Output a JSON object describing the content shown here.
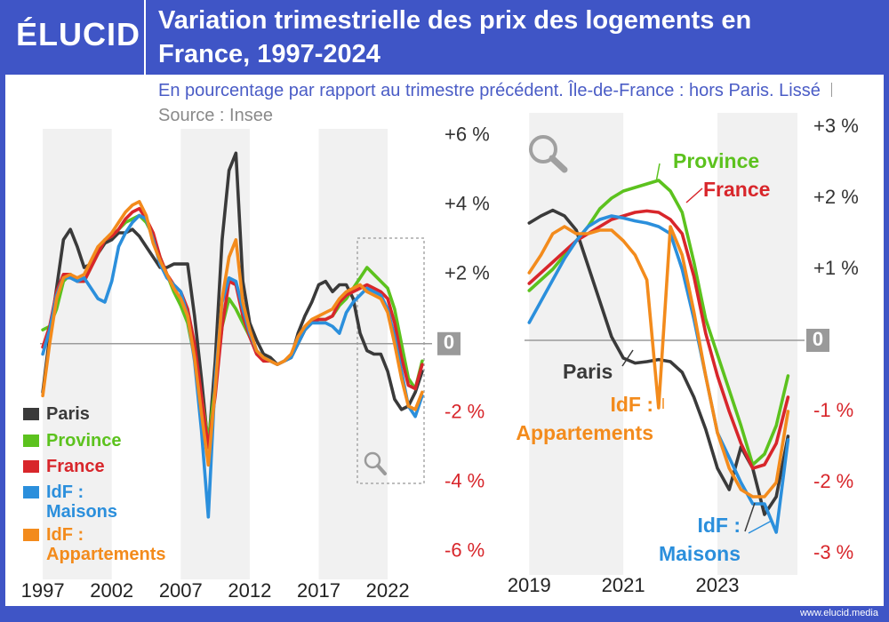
{
  "logo": "ÉLUCID",
  "title": "Variation trimestrielle des prix des logements en France, 1997-2024",
  "subtitle": "En pourcentage par rapport au trimestre précédent. Île-de-France : hors Paris. Lissé",
  "source": "Source : Insee",
  "footer": "www.elucid.media",
  "chart_data": [
    {
      "type": "line",
      "x": [
        1997,
        1997.5,
        1998,
        1998.5,
        1999,
        1999.5,
        2000,
        2000.5,
        2001,
        2001.5,
        2002,
        2002.5,
        2003,
        2003.5,
        2004,
        2004.5,
        2005,
        2005.5,
        2006,
        2006.5,
        2007,
        2007.5,
        2008,
        2008.5,
        2009,
        2009.5,
        2010,
        2010.5,
        2011,
        2011.5,
        2012,
        2012.5,
        2013,
        2013.5,
        2014,
        2014.5,
        2015,
        2015.5,
        2016,
        2016.5,
        2017,
        2017.5,
        2018,
        2018.5,
        2019,
        2019.5,
        2020,
        2020.5,
        2021,
        2021.5,
        2022,
        2022.5,
        2023,
        2023.5,
        2024,
        2024.5
      ],
      "series": [
        {
          "name": "Paris",
          "color": "#3a3a3a",
          "values": [
            -1.4,
            0.2,
            1.6,
            3.0,
            3.3,
            2.8,
            2.2,
            2.3,
            2.6,
            2.9,
            3.0,
            3.2,
            3.2,
            3.3,
            3.1,
            2.8,
            2.5,
            2.2,
            2.2,
            2.3,
            2.3,
            2.3,
            0.8,
            -1.0,
            -3.0,
            -0.5,
            3.0,
            5.0,
            5.5,
            1.8,
            0.6,
            0.1,
            -0.3,
            -0.4,
            -0.6,
            -0.5,
            -0.4,
            0.3,
            0.8,
            1.2,
            1.7,
            1.8,
            1.5,
            1.7,
            1.7,
            1.3,
            0.3,
            -0.2,
            -0.3,
            -0.3,
            -0.8,
            -1.6,
            -1.9,
            -1.8,
            -1.4,
            -0.8
          ]
        },
        {
          "name": "Province",
          "color": "#5cc21e",
          "values": [
            0.4,
            0.5,
            1.0,
            1.8,
            2.0,
            1.8,
            1.8,
            2.2,
            2.6,
            3.0,
            3.1,
            3.3,
            3.5,
            3.6,
            3.7,
            3.5,
            3.1,
            2.5,
            2.0,
            1.5,
            1.1,
            0.6,
            -0.4,
            -1.5,
            -2.8,
            -1.2,
            0.5,
            1.3,
            1.0,
            0.6,
            0.2,
            -0.2,
            -0.4,
            -0.5,
            -0.6,
            -0.5,
            -0.4,
            0.0,
            0.4,
            0.6,
            0.7,
            0.7,
            0.8,
            1.1,
            1.3,
            1.6,
            1.9,
            2.2,
            2.0,
            1.8,
            1.6,
            1.0,
            0.0,
            -1.0,
            -1.3,
            -0.5
          ]
        },
        {
          "name": "France",
          "color": "#d8262b",
          "values": [
            -0.1,
            0.5,
            1.5,
            2.0,
            2.0,
            1.8,
            1.8,
            2.2,
            2.6,
            3.0,
            3.1,
            3.3,
            3.6,
            3.8,
            3.9,
            3.6,
            3.2,
            2.5,
            2.0,
            1.7,
            1.5,
            1.0,
            0.0,
            -1.5,
            -3.0,
            -1.5,
            0.5,
            1.8,
            1.7,
            0.8,
            0.2,
            -0.3,
            -0.5,
            -0.5,
            -0.6,
            -0.5,
            -0.4,
            0.0,
            0.4,
            0.6,
            0.7,
            0.7,
            0.8,
            1.2,
            1.4,
            1.5,
            1.6,
            1.7,
            1.6,
            1.5,
            1.3,
            0.6,
            -0.4,
            -1.2,
            -1.3,
            -0.6
          ]
        },
        {
          "name": "IdF : Maisons",
          "color": "#2b8fdc",
          "values": [
            -0.3,
            0.4,
            1.4,
            1.9,
            1.9,
            1.8,
            1.9,
            1.6,
            1.3,
            1.2,
            1.8,
            2.8,
            3.2,
            3.5,
            3.7,
            3.6,
            3.0,
            2.3,
            1.9,
            1.7,
            1.5,
            0.8,
            -0.5,
            -2.5,
            -5.0,
            -1.0,
            1.2,
            1.9,
            1.8,
            1.0,
            0.3,
            -0.2,
            -0.4,
            -0.5,
            -0.6,
            -0.5,
            -0.4,
            0.0,
            0.4,
            0.6,
            0.6,
            0.6,
            0.5,
            0.3,
            0.9,
            1.2,
            1.4,
            1.6,
            1.5,
            1.4,
            1.0,
            0.2,
            -0.8,
            -1.8,
            -2.1,
            -1.5
          ]
        },
        {
          "name": "IdF : Appartements",
          "color": "#f38b1c",
          "values": [
            -1.5,
            0.0,
            1.3,
            1.9,
            2.0,
            1.9,
            2.0,
            2.4,
            2.8,
            3.0,
            3.2,
            3.5,
            3.8,
            4.0,
            4.1,
            3.7,
            2.9,
            2.4,
            2.0,
            1.6,
            1.3,
            0.8,
            -0.4,
            -2.0,
            -3.5,
            -1.3,
            1.3,
            2.5,
            3.0,
            1.2,
            0.4,
            -0.2,
            -0.4,
            -0.5,
            -0.6,
            -0.5,
            -0.3,
            0.2,
            0.5,
            0.7,
            0.8,
            0.9,
            1.0,
            1.3,
            1.5,
            1.6,
            1.7,
            1.5,
            1.4,
            1.3,
            0.9,
            0.0,
            -1.0,
            -1.8,
            -1.9,
            -1.4
          ]
        }
      ],
      "xlim": [
        1996.8,
        2024.7
      ],
      "xticks": [
        1997,
        2002,
        2007,
        2012,
        2017,
        2022
      ],
      "ylim": [
        -6.8,
        6.2
      ],
      "yticks": [
        {
          "value": 6,
          "label": "+6 %"
        },
        {
          "value": 4,
          "label": "+4 %"
        },
        {
          "value": 2,
          "label": "+2 %"
        },
        0,
        {
          "value": -2,
          "label": "-2 %"
        },
        {
          "value": -4,
          "label": "-4 %"
        },
        {
          "value": -6,
          "label": "-6 %"
        }
      ]
    },
    {
      "type": "line",
      "x": [
        2019,
        2019.25,
        2019.5,
        2019.75,
        2020,
        2020.25,
        2020.5,
        2020.75,
        2021,
        2021.25,
        2021.5,
        2021.75,
        2022,
        2022.25,
        2022.5,
        2022.75,
        2023,
        2023.25,
        2023.5,
        2023.75,
        2024,
        2024.25,
        2024.5
      ],
      "series": [
        {
          "name": "Paris",
          "color": "#3a3a3a",
          "values": [
            1.65,
            1.75,
            1.83,
            1.75,
            1.55,
            1.05,
            0.55,
            0.05,
            -0.25,
            -0.32,
            -0.3,
            -0.27,
            -0.3,
            -0.45,
            -0.8,
            -1.25,
            -1.8,
            -2.1,
            -1.5,
            -1.8,
            -2.45,
            -2.2,
            -1.35
          ]
        },
        {
          "name": "Province",
          "color": "#5cc21e",
          "values": [
            0.7,
            0.85,
            1.0,
            1.2,
            1.4,
            1.6,
            1.85,
            2.0,
            2.1,
            2.15,
            2.2,
            2.25,
            2.1,
            1.8,
            1.1,
            0.3,
            -0.2,
            -0.7,
            -1.2,
            -1.75,
            -1.6,
            -1.2,
            -0.5
          ]
        },
        {
          "name": "France",
          "color": "#d8262b",
          "values": [
            0.8,
            0.95,
            1.1,
            1.25,
            1.4,
            1.5,
            1.6,
            1.7,
            1.75,
            1.8,
            1.82,
            1.8,
            1.7,
            1.5,
            0.9,
            0.1,
            -0.5,
            -1.0,
            -1.45,
            -1.8,
            -1.75,
            -1.45,
            -0.8
          ]
        },
        {
          "name": "IdF : Maisons",
          "color": "#2b8fdc",
          "values": [
            0.25,
            0.55,
            0.85,
            1.15,
            1.4,
            1.6,
            1.7,
            1.75,
            1.72,
            1.68,
            1.65,
            1.6,
            1.5,
            1.0,
            0.3,
            -0.5,
            -1.3,
            -1.65,
            -2.0,
            -2.3,
            -2.3,
            -2.7,
            -1.4
          ]
        },
        {
          "name": "IdF : Appartements",
          "color": "#f38b1c",
          "values": [
            0.95,
            1.2,
            1.5,
            1.6,
            1.5,
            1.5,
            1.55,
            1.55,
            1.4,
            1.2,
            0.85,
            -0.95,
            1.6,
            1.2,
            0.4,
            -0.5,
            -1.3,
            -1.8,
            -2.1,
            -2.2,
            -2.2,
            -2.0,
            -1.0
          ]
        }
      ],
      "xlim": [
        2018.9,
        2024.7
      ],
      "xticks": [
        2019,
        2021,
        2023
      ],
      "ylim": [
        -3.3,
        3.2
      ],
      "yticks": [
        {
          "value": 3,
          "label": "+3 %"
        },
        {
          "value": 2,
          "label": "+2 %"
        },
        {
          "value": 1,
          "label": "+1 %"
        },
        0,
        {
          "value": -1,
          "label": "-1 %"
        },
        {
          "value": -2,
          "label": "-2 %"
        },
        {
          "value": -3,
          "label": "-3 %"
        }
      ]
    }
  ]
}
